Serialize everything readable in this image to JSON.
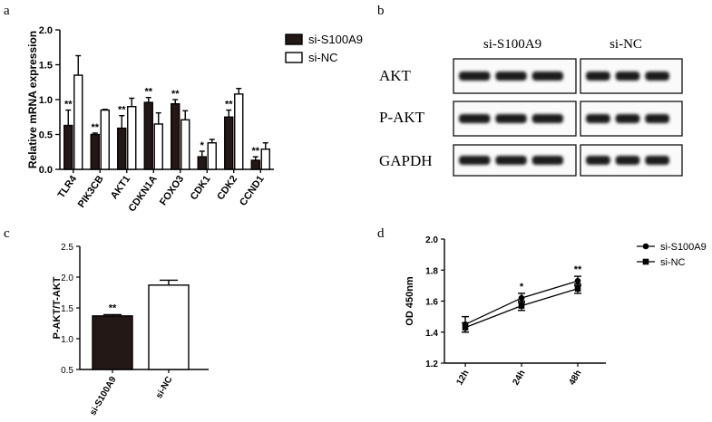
{
  "panels": {
    "a": "a",
    "b": "b",
    "c": "c",
    "d": "d"
  },
  "chart_data": [
    {
      "panel": "a",
      "type": "bar",
      "title": "",
      "xlabel": "",
      "ylabel": "Relative mRNA expression",
      "ylim": [
        0,
        2.0
      ],
      "yticks": [
        "0.0",
        "0.5",
        "1.0",
        "1.5",
        "2.0"
      ],
      "categories": [
        "TLR4",
        "PIK3CB",
        "AKT1",
        "CDKN1A",
        "FOXO3",
        "CDK1",
        "CDK2",
        "CCND1"
      ],
      "series": [
        {
          "name": "si-S100A9",
          "values": [
            0.63,
            0.5,
            0.59,
            0.96,
            0.94,
            0.18,
            0.75,
            0.13
          ],
          "errors": [
            0.22,
            0.02,
            0.18,
            0.07,
            0.06,
            0.08,
            0.1,
            0.05
          ],
          "color": "#231815"
        },
        {
          "name": "si-NC",
          "values": [
            1.35,
            0.85,
            0.9,
            0.65,
            0.71,
            0.38,
            1.08,
            0.29
          ],
          "errors": [
            0.28,
            0.01,
            0.12,
            0.16,
            0.13,
            0.05,
            0.08,
            0.09
          ],
          "color": "#ffffff"
        }
      ],
      "significance": [
        "**",
        "**",
        "**",
        "**",
        "**",
        "*",
        "**",
        "**"
      ],
      "legend": "top-right"
    },
    {
      "panel": "c",
      "type": "bar",
      "title": "",
      "xlabel": "",
      "ylabel": "P-AKT/T-AKT",
      "ylim": [
        0.5,
        2.5
      ],
      "yticks": [
        "0.5",
        "1.0",
        "1.5",
        "2.0",
        "2.5"
      ],
      "categories": [
        "si-S100A9",
        "si-NC"
      ],
      "values": [
        1.37,
        1.87
      ],
      "errors": [
        0.02,
        0.08
      ],
      "colors": [
        "#231815",
        "#ffffff"
      ],
      "significance": [
        "**",
        ""
      ]
    },
    {
      "panel": "d",
      "type": "line",
      "title": "",
      "xlabel": "",
      "ylabel": "OD 450nm",
      "ylim": [
        1.2,
        2.0
      ],
      "yticks": [
        "1.2",
        "1.4",
        "1.6",
        "1.8",
        "2.0"
      ],
      "categories": [
        "12h",
        "24h",
        "48h"
      ],
      "series": [
        {
          "name": "si-S100A9",
          "marker": "circle",
          "values": [
            1.45,
            1.62,
            1.73
          ],
          "errors": [
            0.05,
            0.03,
            0.03
          ]
        },
        {
          "name": "si-NC",
          "marker": "square",
          "values": [
            1.43,
            1.57,
            1.68
          ],
          "errors": [
            0.03,
            0.03,
            0.03
          ]
        }
      ],
      "significance": [
        "",
        "*",
        "**"
      ],
      "legend": "top-right"
    }
  ],
  "blot": {
    "group_labels": [
      "si-S100A9",
      "si-NC"
    ],
    "rows": [
      "AKT",
      "P-AKT",
      "GAPDH"
    ]
  }
}
